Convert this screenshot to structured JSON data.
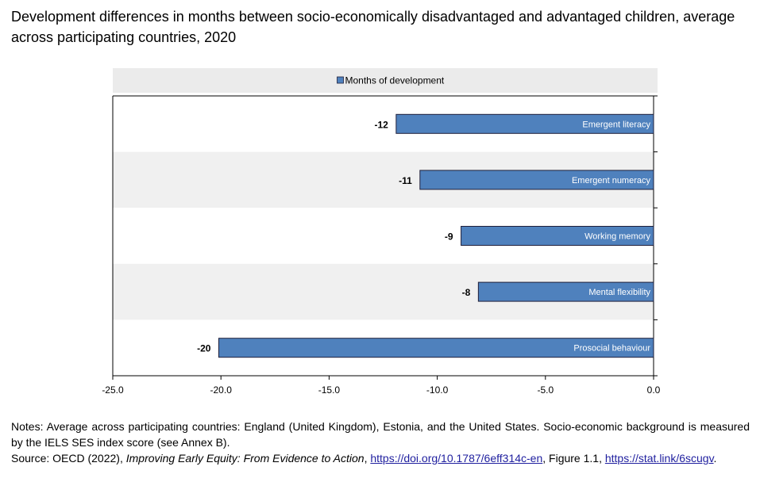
{
  "title": "Development differences in months between socio-economically disadvantaged and advantaged children, average across participating countries, 2020",
  "chart_data": {
    "type": "bar",
    "orientation": "horizontal",
    "categories": [
      "Emergent literacy",
      "Emergent numeracy",
      "Working memory",
      "Mental flexibility",
      "Prosocial behaviour"
    ],
    "series": [
      {
        "name": "Months of development",
        "values": [
          -11.9,
          -10.8,
          -8.9,
          -8.1,
          -20.1
        ]
      }
    ],
    "data_labels": [
      "-12",
      "-11",
      "-9",
      "-8",
      "-20"
    ],
    "xlim": [
      -25,
      0
    ],
    "xticks": [
      -25,
      -20,
      -15,
      -10,
      -5,
      0
    ],
    "xtick_labels": [
      "-25.0",
      "-20.0",
      "-15.0",
      "-10.0",
      "-5.0",
      "0.0"
    ],
    "legend_position": "top",
    "category_labels_position": "inside bars, right-aligned",
    "colors": {
      "bar": "#4f81bd",
      "bar_border": "#1f1f3a",
      "plot_bg_alt": "#f0f0f0",
      "legend_bg": "#ebebeb"
    }
  },
  "notes": {
    "notes_text": "Notes: Average across participating countries: England (United Kingdom), Estonia, and the United States. Socio-economic background is measured by the IELS SES index score (see Annex B).",
    "source_prefix": "Source: OECD (2022), ",
    "source_title": "Improving Early Equity: From Evidence to Action",
    "source_sep1": ", ",
    "source_link1": "https://doi.org/10.1787/6eff314c-en",
    "source_sep2": ", Figure 1.1, ",
    "source_link2": "https://stat.link/6scugv",
    "source_end": "."
  }
}
